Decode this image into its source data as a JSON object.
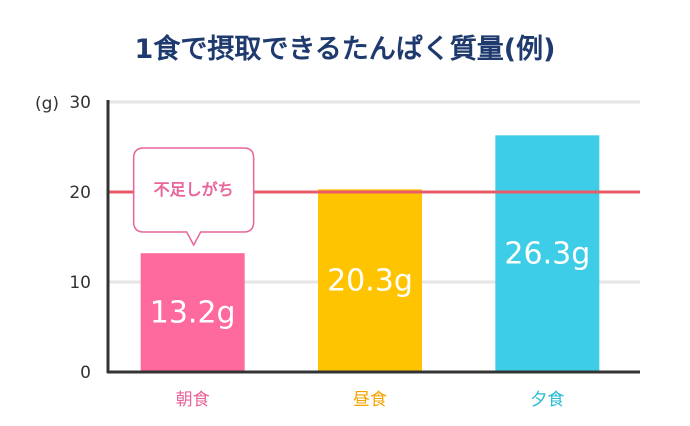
{
  "chart_data": {
    "type": "bar",
    "title": "1食で摂取できるたんぱく質量(例)",
    "unit_label": "(g)",
    "categories": [
      "朝食",
      "昼食",
      "夕食"
    ],
    "values": [
      13.2,
      20.3,
      26.3
    ],
    "value_labels": [
      "13.2g",
      "20.3g",
      "26.3g"
    ],
    "ylim": [
      0,
      30
    ],
    "yticks": [
      0,
      10,
      20,
      30
    ],
    "grid": true,
    "reference_line": {
      "value": 20,
      "color": "#e85c6a"
    },
    "callout": {
      "text": "不足しがち",
      "category_index": 0
    },
    "colors": {
      "bars": [
        "#ff6a9e",
        "#ffc400",
        "#3ecde6"
      ],
      "category_labels": [
        "#e8659b",
        "#f5a300",
        "#2bbad6"
      ],
      "callout_border": "#e8659b",
      "grid": "#e6e6e6",
      "axis": "#333333"
    }
  }
}
